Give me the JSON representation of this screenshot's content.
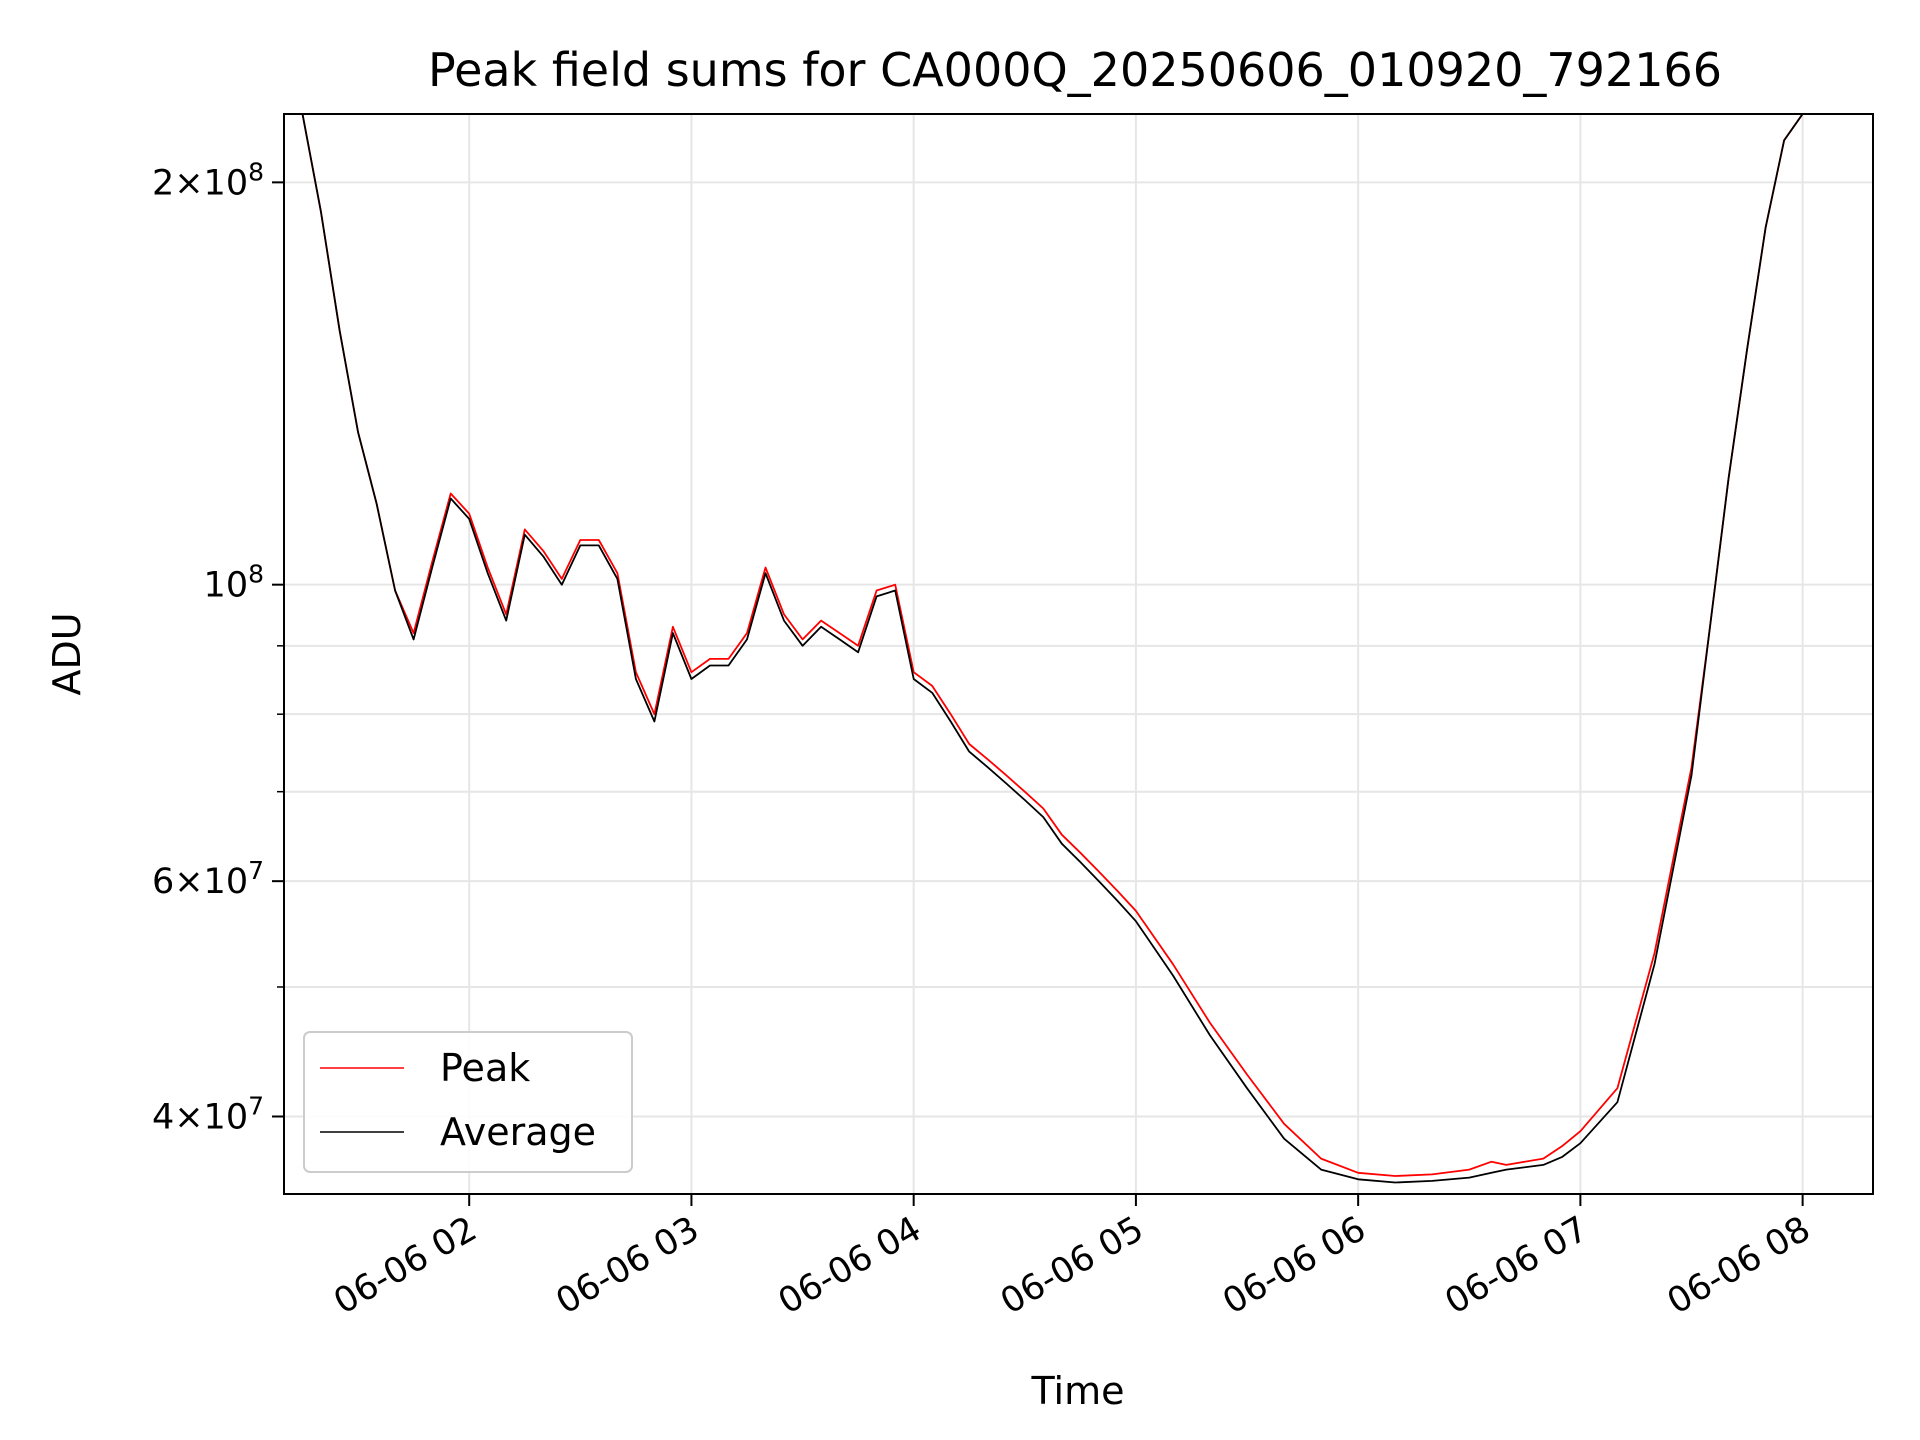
{
  "chart_data": {
    "type": "line",
    "title": "Peak field sums for CA000Q_20250606_010920_792166",
    "xlabel": "Time",
    "ylabel": "ADU",
    "yscale": "log",
    "grid": true,
    "legend_placement": "lower-left",
    "xlim": [
      "2025-06-06 01:10",
      "2025-06-06 08:19"
    ],
    "ylim": [
      35000000,
      225000000
    ],
    "x_ticks": [
      "06-06 02",
      "06-06 03",
      "06-06 04",
      "06-06 05",
      "06-06 06",
      "06-06 07",
      "06-06 08"
    ],
    "x_tick_times": [
      "2025-06-06 02:00",
      "2025-06-06 03:00",
      "2025-06-06 04:00",
      "2025-06-06 05:00",
      "2025-06-06 06:00",
      "2025-06-06 07:00",
      "2025-06-06 08:00"
    ],
    "y_major_ticks": [
      {
        "value": 40000000,
        "mantissa": "4",
        "exponent": "7"
      },
      {
        "value": 60000000,
        "mantissa": "6",
        "exponent": "7"
      },
      {
        "value": 100000000,
        "mantissa": "",
        "exponent": "8"
      },
      {
        "value": 200000000,
        "mantissa": "2",
        "exponent": "8"
      }
    ],
    "y_minor_ticks": [
      50000000,
      70000000,
      80000000,
      90000000
    ],
    "series": [
      {
        "name": "Peak",
        "color": "#ff0000",
        "x": [
          "2025-06-06 01:10",
          "2025-06-06 01:15",
          "2025-06-06 01:20",
          "2025-06-06 01:25",
          "2025-06-06 01:30",
          "2025-06-06 01:35",
          "2025-06-06 01:40",
          "2025-06-06 01:45",
          "2025-06-06 01:50",
          "2025-06-06 01:55",
          "2025-06-06 02:00",
          "2025-06-06 02:05",
          "2025-06-06 02:10",
          "2025-06-06 02:15",
          "2025-06-06 02:20",
          "2025-06-06 02:25",
          "2025-06-06 02:30",
          "2025-06-06 02:35",
          "2025-06-06 02:40",
          "2025-06-06 02:45",
          "2025-06-06 02:50",
          "2025-06-06 02:55",
          "2025-06-06 03:00",
          "2025-06-06 03:05",
          "2025-06-06 03:10",
          "2025-06-06 03:15",
          "2025-06-06 03:20",
          "2025-06-06 03:25",
          "2025-06-06 03:30",
          "2025-06-06 03:35",
          "2025-06-06 03:40",
          "2025-06-06 03:45",
          "2025-06-06 03:50",
          "2025-06-06 03:55",
          "2025-06-06 04:00",
          "2025-06-06 04:05",
          "2025-06-06 04:10",
          "2025-06-06 04:15",
          "2025-06-06 04:20",
          "2025-06-06 04:25",
          "2025-06-06 04:30",
          "2025-06-06 04:35",
          "2025-06-06 04:40",
          "2025-06-06 04:45",
          "2025-06-06 04:50",
          "2025-06-06 04:55",
          "2025-06-06 05:00",
          "2025-06-06 05:10",
          "2025-06-06 05:20",
          "2025-06-06 05:30",
          "2025-06-06 05:40",
          "2025-06-06 05:50",
          "2025-06-06 06:00",
          "2025-06-06 06:10",
          "2025-06-06 06:20",
          "2025-06-06 06:30",
          "2025-06-06 06:36",
          "2025-06-06 06:40",
          "2025-06-06 06:50",
          "2025-06-06 06:55",
          "2025-06-06 07:00",
          "2025-06-06 07:10",
          "2025-06-06 07:20",
          "2025-06-06 07:30",
          "2025-06-06 07:35",
          "2025-06-06 07:40",
          "2025-06-06 07:45",
          "2025-06-06 07:50",
          "2025-06-06 07:55",
          "2025-06-06 08:00",
          "2025-06-06 08:05",
          "2025-06-06 08:10",
          "2025-06-06 08:15",
          "2025-06-06 08:19"
        ],
        "y": [
          225000000,
          225000000,
          190000000,
          155000000,
          130000000,
          115000000,
          99000000,
          92000000,
          104000000,
          117000000,
          113000000,
          103000000,
          95000000,
          110000000,
          106000000,
          101000000,
          108000000,
          108000000,
          102000000,
          86000000,
          80000000,
          93000000,
          86000000,
          88000000,
          88000000,
          92000000,
          103000000,
          95000000,
          91000000,
          94000000,
          92000000,
          90000000,
          99000000,
          100000000,
          86000000,
          84000000,
          80000000,
          76000000,
          74000000,
          72000000,
          70000000,
          68000000,
          65000000,
          63000000,
          61000000,
          59000000,
          57000000,
          52000000,
          47000000,
          43000000,
          39500000,
          37200000,
          36300000,
          36100000,
          36200000,
          36500000,
          37000000,
          36800000,
          37200000,
          38000000,
          39000000,
          42000000,
          53000000,
          73000000,
          93000000,
          120000000,
          150000000,
          185000000,
          215000000,
          225000000,
          225000000,
          225000000,
          225000000,
          225000000
        ]
      },
      {
        "name": "Average",
        "color": "#000000",
        "x": [
          "2025-06-06 01:10",
          "2025-06-06 01:15",
          "2025-06-06 01:20",
          "2025-06-06 01:25",
          "2025-06-06 01:30",
          "2025-06-06 01:35",
          "2025-06-06 01:40",
          "2025-06-06 01:45",
          "2025-06-06 01:50",
          "2025-06-06 01:55",
          "2025-06-06 02:00",
          "2025-06-06 02:05",
          "2025-06-06 02:10",
          "2025-06-06 02:15",
          "2025-06-06 02:20",
          "2025-06-06 02:25",
          "2025-06-06 02:30",
          "2025-06-06 02:35",
          "2025-06-06 02:40",
          "2025-06-06 02:45",
          "2025-06-06 02:50",
          "2025-06-06 02:55",
          "2025-06-06 03:00",
          "2025-06-06 03:05",
          "2025-06-06 03:10",
          "2025-06-06 03:15",
          "2025-06-06 03:20",
          "2025-06-06 03:25",
          "2025-06-06 03:30",
          "2025-06-06 03:35",
          "2025-06-06 03:40",
          "2025-06-06 03:45",
          "2025-06-06 03:50",
          "2025-06-06 03:55",
          "2025-06-06 04:00",
          "2025-06-06 04:05",
          "2025-06-06 04:10",
          "2025-06-06 04:15",
          "2025-06-06 04:20",
          "2025-06-06 04:25",
          "2025-06-06 04:30",
          "2025-06-06 04:35",
          "2025-06-06 04:40",
          "2025-06-06 04:45",
          "2025-06-06 04:50",
          "2025-06-06 04:55",
          "2025-06-06 05:00",
          "2025-06-06 05:10",
          "2025-06-06 05:20",
          "2025-06-06 05:30",
          "2025-06-06 05:40",
          "2025-06-06 05:50",
          "2025-06-06 06:00",
          "2025-06-06 06:10",
          "2025-06-06 06:20",
          "2025-06-06 06:30",
          "2025-06-06 06:36",
          "2025-06-06 06:40",
          "2025-06-06 06:50",
          "2025-06-06 06:55",
          "2025-06-06 07:00",
          "2025-06-06 07:10",
          "2025-06-06 07:20",
          "2025-06-06 07:30",
          "2025-06-06 07:35",
          "2025-06-06 07:40",
          "2025-06-06 07:45",
          "2025-06-06 07:50",
          "2025-06-06 07:55",
          "2025-06-06 08:00",
          "2025-06-06 08:05",
          "2025-06-06 08:10",
          "2025-06-06 08:15",
          "2025-06-06 08:19"
        ],
        "y": [
          225000000,
          225000000,
          190000000,
          155000000,
          130000000,
          115000000,
          99000000,
          91000000,
          103000000,
          116000000,
          112000000,
          102000000,
          94000000,
          109000000,
          105000000,
          100000000,
          107000000,
          107000000,
          101000000,
          85000000,
          79000000,
          92000000,
          85000000,
          87000000,
          87000000,
          91000000,
          102000000,
          94000000,
          90000000,
          93000000,
          91000000,
          89000000,
          98000000,
          99000000,
          85000000,
          83000000,
          79000000,
          75000000,
          73000000,
          71000000,
          69000000,
          67000000,
          64000000,
          62000000,
          60000000,
          58000000,
          56000000,
          51000000,
          46000000,
          42000000,
          38500000,
          36500000,
          35900000,
          35700000,
          35800000,
          36000000,
          36300000,
          36500000,
          36800000,
          37300000,
          38200000,
          41000000,
          52000000,
          72000000,
          93000000,
          120000000,
          150000000,
          185000000,
          215000000,
          225000000,
          225000000,
          225000000,
          225000000,
          225000000
        ]
      }
    ]
  }
}
